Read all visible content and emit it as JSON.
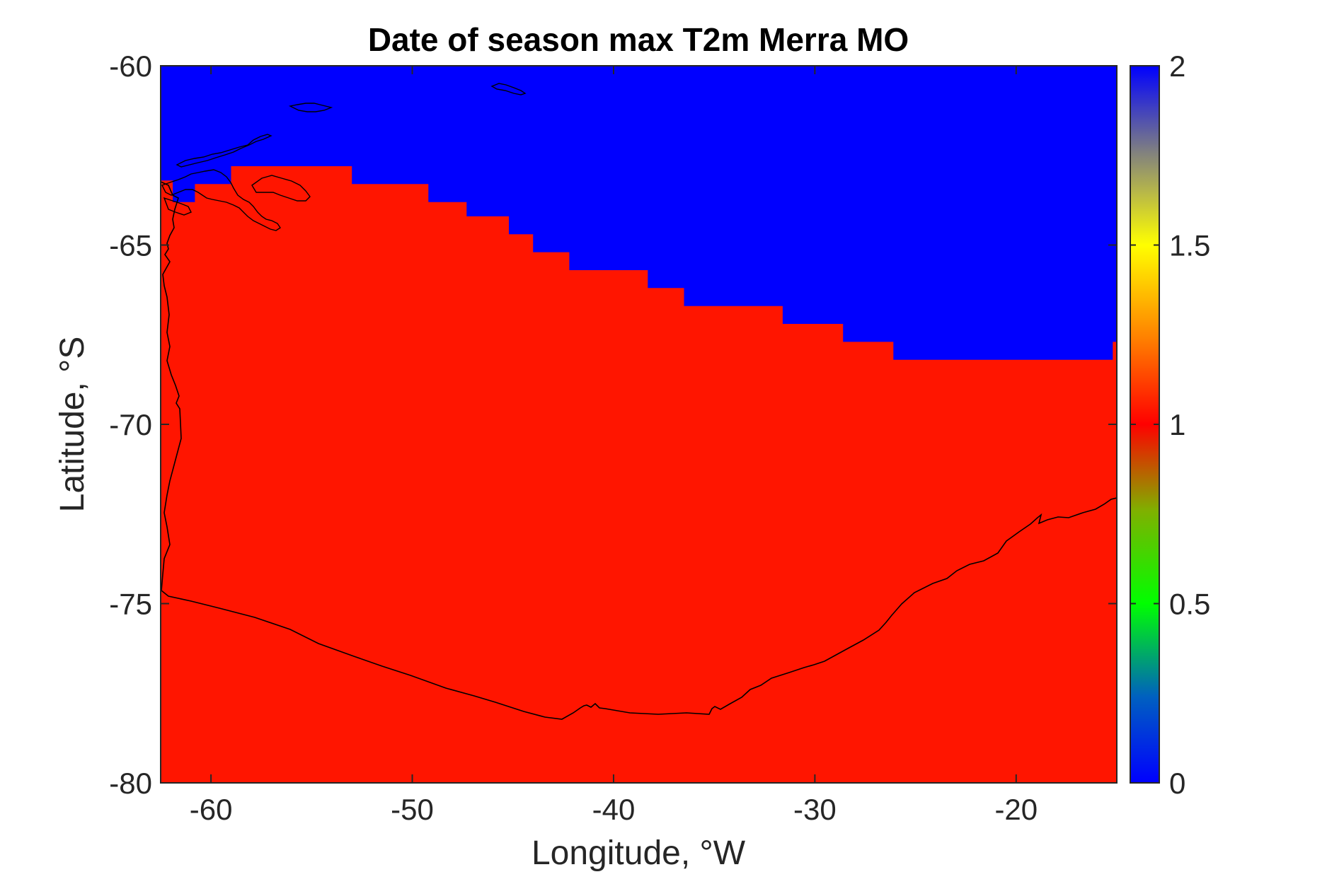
{
  "chart_data": {
    "type": "heatmap",
    "title": "Date of season max T2m Merra MO",
    "xlabel": "Longitude, °W",
    "ylabel": "Latitude, °S",
    "xlim": [
      -62.5,
      -15
    ],
    "ylim": [
      -80,
      -60
    ],
    "xticks": [
      -60,
      -50,
      -40,
      -30,
      -20
    ],
    "yticks": [
      -60,
      -65,
      -70,
      -75,
      -80
    ],
    "grid": false,
    "colorbar": {
      "range": [
        0,
        2
      ],
      "ticks": [
        "0",
        "0.5",
        "1",
        "1.5",
        "2"
      ],
      "colormap": [
        "#0000ff",
        "#00a080",
        "#00ff00",
        "#80b000",
        "#ff0000",
        "#ff8000",
        "#ffff00",
        "#808080",
        "#0000ff"
      ]
    },
    "value_colors": {
      "1": "#ff1500",
      "2": "#0000ff"
    },
    "region_boundary": {
      "description_values": "below boundary value = 1, above boundary value = 2",
      "lon": [
        -62.5,
        -61.9,
        -61.9,
        -60.8,
        -60.8,
        -59.0,
        -59.0,
        -53.0,
        -53.0,
        -49.2,
        -49.2,
        -47.3,
        -47.3,
        -45.2,
        -45.2,
        -44.0,
        -44.0,
        -42.2,
        -42.2,
        -38.3,
        -38.3,
        -36.5,
        -36.5,
        -31.6,
        -31.6,
        -28.6,
        -28.6,
        -26.1,
        -26.1,
        -15.2,
        -15.2,
        -15.0
      ],
      "lat": [
        -63.2,
        -63.2,
        -63.8,
        -63.8,
        -63.3,
        -63.3,
        -62.8,
        -62.8,
        -63.3,
        -63.3,
        -63.8,
        -63.8,
        -64.2,
        -64.2,
        -64.7,
        -64.7,
        -65.2,
        -65.2,
        -65.7,
        -65.7,
        -66.2,
        -66.2,
        -66.7,
        -66.7,
        -67.2,
        -67.2,
        -67.7,
        -67.7,
        -68.2,
        -68.2,
        -67.7,
        -67.7
      ]
    }
  }
}
